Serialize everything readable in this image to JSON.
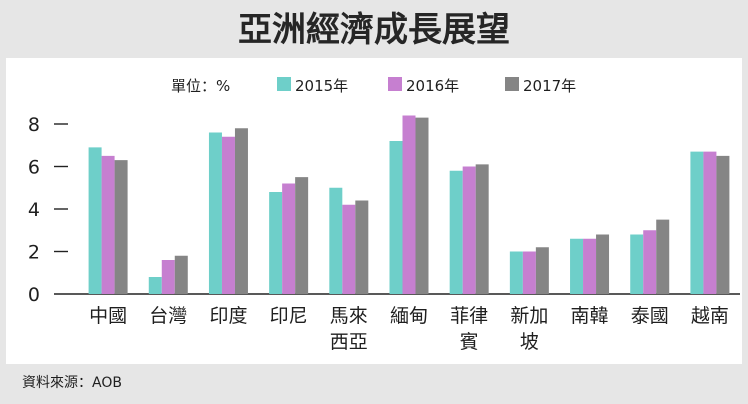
{
  "title": "亞洲經濟成長展望",
  "unit_label": "單位：%",
  "source": "資料來源：AOB",
  "colors": {
    "s2015": "#6ecfc9",
    "s2016": "#c67fd0",
    "s2017": "#858585"
  },
  "chart_data": {
    "type": "bar",
    "title": "亞洲經濟成長展望",
    "xlabel": "",
    "ylabel": "",
    "unit": "%",
    "ylim": [
      0,
      8.6
    ],
    "yticks": [
      0,
      2,
      4,
      6,
      8
    ],
    "grid": false,
    "legend_position": "top",
    "categories": [
      "中國",
      "台灣",
      "印度",
      "印尼",
      "馬來西亞",
      "緬甸",
      "菲律賓",
      "新加坡",
      "南韓",
      "泰國",
      "越南"
    ],
    "category_lines": [
      [
        "中國"
      ],
      [
        "台灣"
      ],
      [
        "印度"
      ],
      [
        "印尼"
      ],
      [
        "馬來",
        "西亞"
      ],
      [
        "緬甸"
      ],
      [
        "菲律",
        "賓"
      ],
      [
        "新加",
        "坡"
      ],
      [
        "南韓"
      ],
      [
        "泰國"
      ],
      [
        "越南"
      ]
    ],
    "series": [
      {
        "name": "2015年",
        "color": "#6ecfc9",
        "values": [
          6.9,
          0.8,
          7.6,
          4.8,
          5.0,
          7.2,
          5.8,
          2.0,
          2.6,
          2.8,
          6.7
        ]
      },
      {
        "name": "2016年",
        "color": "#c67fd0",
        "values": [
          6.5,
          1.6,
          7.4,
          5.2,
          4.2,
          8.4,
          6.0,
          2.0,
          2.6,
          3.0,
          6.7
        ]
      },
      {
        "name": "2017年",
        "color": "#858585",
        "values": [
          6.3,
          1.8,
          7.8,
          5.5,
          4.4,
          8.3,
          6.1,
          2.2,
          2.8,
          3.5,
          6.5
        ]
      }
    ]
  }
}
